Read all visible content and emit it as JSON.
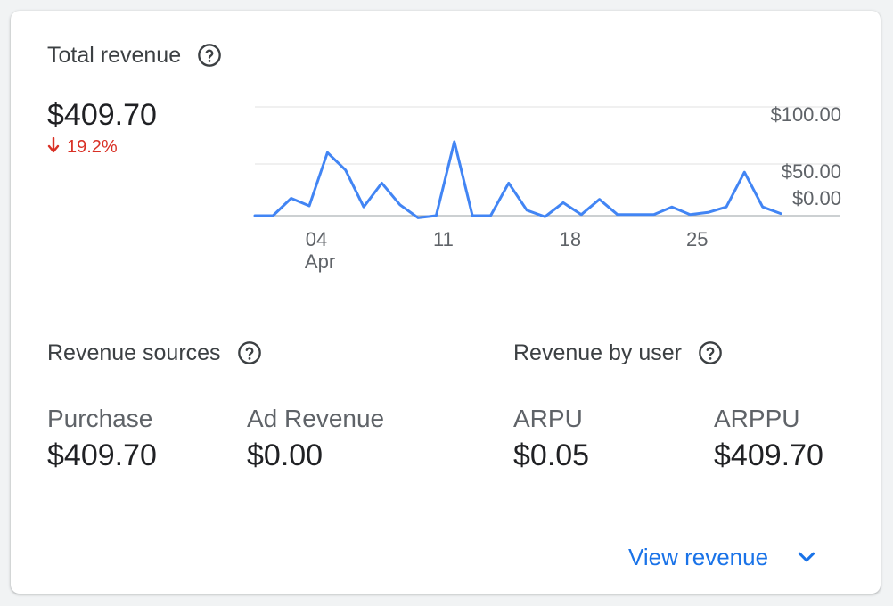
{
  "card": {
    "title": "Total revenue",
    "total_value": "$409.70",
    "delta": "19.2%",
    "delta_direction": "down",
    "delta_color": "#d93025"
  },
  "chart_data": {
    "type": "line",
    "x_tick_labels": [
      "04",
      "11",
      "18",
      "25"
    ],
    "x_month_label": "Apr",
    "y_tick_labels": [
      "$100.00",
      "$50.00",
      "$0.00"
    ],
    "ylim": [
      0,
      100
    ],
    "grid": true,
    "line_color": "#4285f4",
    "series": [
      {
        "values": [
          0,
          0,
          16,
          9,
          58,
          42,
          8,
          30,
          10,
          -2,
          0,
          68,
          0,
          0,
          30,
          5,
          -1,
          12,
          1,
          15,
          1,
          1,
          1,
          8,
          1,
          3,
          8,
          40,
          8,
          2
        ]
      }
    ]
  },
  "revenue_sources": {
    "title": "Revenue sources",
    "items": [
      {
        "label": "Purchase",
        "value": "$409.70"
      },
      {
        "label": "Ad Revenue",
        "value": "$0.00"
      }
    ]
  },
  "revenue_by_user": {
    "title": "Revenue by user",
    "items": [
      {
        "label": "ARPU",
        "value": "$0.05"
      },
      {
        "label": "ARPPU",
        "value": "$409.70"
      }
    ]
  },
  "footer": {
    "view_label": "View revenue",
    "link_color": "#1a73e8"
  },
  "icons": {
    "help": "help-circle-icon",
    "delta": "arrow-down-icon",
    "expand": "chevron-down-icon"
  }
}
